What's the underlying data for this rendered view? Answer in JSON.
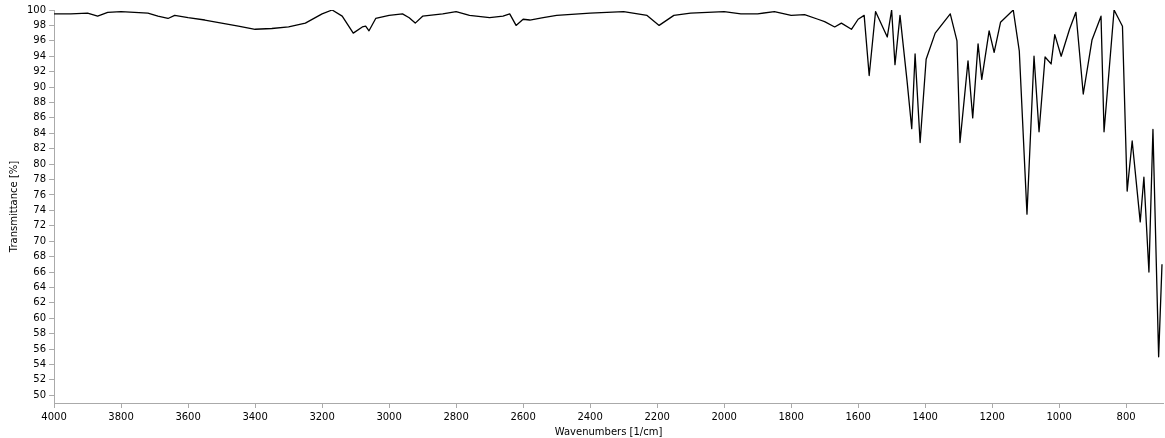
{
  "chart_data": {
    "type": "line",
    "xlabel": "Wavenumbers [1/cm]",
    "ylabel": "Transmittance [%]",
    "xlim": [
      4000,
      690
    ],
    "ylim": [
      49,
      100
    ],
    "xticks": [
      4000,
      3800,
      3600,
      3400,
      3200,
      3000,
      2800,
      2600,
      2400,
      2200,
      2000,
      1800,
      1600,
      1400,
      1200,
      1000,
      800
    ],
    "yticks": [
      50,
      52,
      54,
      56,
      58,
      60,
      62,
      64,
      66,
      68,
      70,
      72,
      74,
      76,
      78,
      80,
      82,
      84,
      86,
      88,
      90,
      92,
      94,
      96,
      98,
      100
    ],
    "grid": false,
    "legend": false,
    "marker": "none",
    "line_style": "solid",
    "series": [
      {
        "color": "#000000",
        "x": [
          4000,
          3950,
          3900,
          3870,
          3840,
          3800,
          3760,
          3720,
          3690,
          3660,
          3640,
          3600,
          3550,
          3500,
          3450,
          3400,
          3350,
          3300,
          3250,
          3200,
          3170,
          3140,
          3107,
          3080,
          3070,
          3060,
          3040,
          3000,
          2960,
          2940,
          2922,
          2900,
          2880,
          2840,
          2800,
          2760,
          2700,
          2660,
          2640,
          2621,
          2600,
          2580,
          2540,
          2500,
          2400,
          2300,
          2230,
          2194,
          2150,
          2100,
          2000,
          1950,
          1900,
          1850,
          1800,
          1760,
          1720,
          1700,
          1670,
          1650,
          1620,
          1600,
          1582,
          1567,
          1548,
          1513,
          1500,
          1490,
          1475,
          1454,
          1440,
          1430,
          1415,
          1397,
          1370,
          1325,
          1305,
          1296,
          1272,
          1258,
          1242,
          1231,
          1209,
          1194,
          1175,
          1137,
          1119,
          1096,
          1075,
          1060,
          1042,
          1024,
          1013,
          994,
          969,
          950,
          928,
          902,
          875,
          866,
          836,
          811,
          797,
          782,
          758,
          747,
          732,
          720,
          703,
          693
        ],
        "values": [
          99.5,
          99.5,
          99.6,
          99.2,
          99.7,
          99.8,
          99.7,
          99.6,
          99.2,
          98.9,
          99.3,
          99.0,
          98.7,
          98.3,
          97.9,
          97.5,
          97.6,
          97.8,
          98.3,
          99.5,
          100,
          99.2,
          97.0,
          97.8,
          97.9,
          97.3,
          98.9,
          99.3,
          99.5,
          99.0,
          98.3,
          99.2,
          99.3,
          99.5,
          99.8,
          99.3,
          99.0,
          99.2,
          99.5,
          98.0,
          98.8,
          98.7,
          99.0,
          99.3,
          99.6,
          99.8,
          99.3,
          98.0,
          99.3,
          99.6,
          99.8,
          99.5,
          99.5,
          99.8,
          99.3,
          99.4,
          98.8,
          98.5,
          97.8,
          98.3,
          97.5,
          98.8,
          99.3,
          91.5,
          99.8,
          96.5,
          100,
          92.9,
          99.3,
          90.8,
          84.6,
          94.3,
          82.8,
          93.6,
          97.0,
          99.5,
          96.0,
          82.8,
          93.4,
          86.0,
          95.6,
          91.0,
          97.3,
          94.5,
          98.4,
          100,
          94.7,
          73.5,
          94.0,
          84.2,
          93.9,
          93.0,
          96.8,
          94.0,
          97.5,
          99.7,
          89.1,
          96.1,
          99.2,
          84.2,
          100,
          97.9,
          76.5,
          83.0,
          72.5,
          78.3,
          66.0,
          84.5,
          55.0,
          67.0
        ]
      }
    ]
  }
}
